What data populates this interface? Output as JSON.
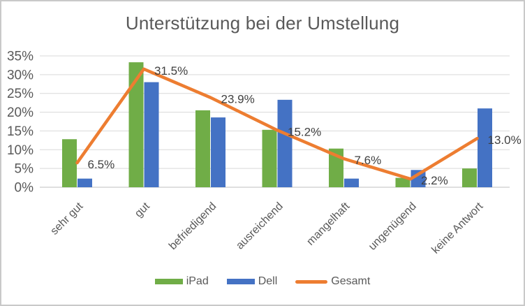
{
  "window": {
    "background": "#ffffff",
    "border_color": "#c9c9c9"
  },
  "chart_data": {
    "type": "bar",
    "subtype": "grouped-bars-with-line-overlay",
    "title": "Unterstützung bei der Umstellung",
    "categories": [
      "sehr gut",
      "gut",
      "befriedigend",
      "ausreichend",
      "mangelhaft",
      "ungenügend",
      "keine Antwort"
    ],
    "series": [
      {
        "name": "iPad",
        "type": "bar",
        "color": "#70AD47",
        "values": [
          12.8,
          33.3,
          20.5,
          15.3,
          10.3,
          2.5,
          5.0
        ]
      },
      {
        "name": "Dell",
        "type": "bar",
        "color": "#4472C4",
        "values": [
          2.3,
          28.0,
          18.6,
          23.3,
          2.3,
          4.6,
          21.0
        ]
      },
      {
        "name": "Gesamt",
        "type": "line",
        "color": "#ED7D31",
        "values": [
          6.5,
          31.5,
          23.9,
          15.2,
          7.6,
          2.2,
          13.0
        ],
        "data_labels": [
          "6.5%",
          "31.5%",
          "23.9%",
          "15.2%",
          "7.6%",
          "2.2%",
          "13.0%"
        ]
      }
    ],
    "y_axis": {
      "min": 0,
      "max": 35,
      "step": 5,
      "tick_labels": [
        "0%",
        "5%",
        "10%",
        "15%",
        "20%",
        "25%",
        "30%",
        "35%"
      ]
    },
    "grid": true,
    "grid_color": "#D9D9D9",
    "baseline_color": "#BFBFBF",
    "legend_position": "bottom",
    "text_colors": {
      "title": "#595959",
      "ticks": "#595959",
      "data_labels": "#404040"
    }
  }
}
